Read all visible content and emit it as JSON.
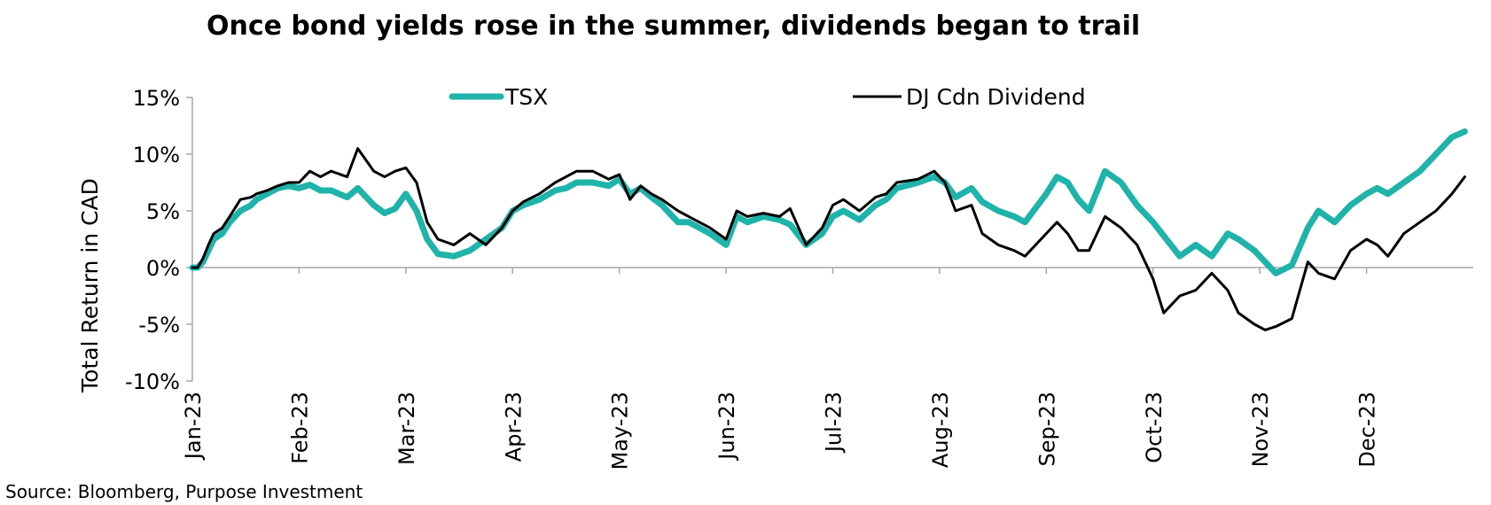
{
  "chart_data": {
    "type": "line",
    "title": "Once bond yields rose in the summer, dividends began to trail",
    "ylabel": "Total Return in CAD",
    "xlabel": "",
    "source": "Source: Bloomberg, Purpose Investment",
    "ylim": [
      -10,
      15
    ],
    "yticks": [
      -10,
      -5,
      0,
      5,
      10,
      15
    ],
    "ytick_labels": [
      "-10%",
      "-5%",
      "0%",
      "5%",
      "10%",
      "15%"
    ],
    "x_tick_labels": [
      "Jan-23",
      "Feb-23",
      "Mar-23",
      "Apr-23",
      "May-23",
      "Jun-23",
      "Jul-23",
      "Aug-23",
      "Sep-23",
      "Oct-23",
      "Nov-23",
      "Dec-23"
    ],
    "x_range": [
      0,
      12
    ],
    "grid": false,
    "legend_position": "top",
    "series": [
      {
        "name": "TSX",
        "color": "#1fb3aa",
        "x": [
          0,
          0.05,
          0.1,
          0.15,
          0.2,
          0.28,
          0.35,
          0.45,
          0.55,
          0.6,
          0.7,
          0.8,
          0.9,
          1.0,
          1.1,
          1.2,
          1.3,
          1.45,
          1.55,
          1.7,
          1.8,
          1.9,
          2.0,
          2.1,
          2.2,
          2.3,
          2.45,
          2.6,
          2.75,
          2.9,
          3.0,
          3.1,
          3.25,
          3.4,
          3.5,
          3.6,
          3.75,
          3.9,
          4.0,
          4.1,
          4.2,
          4.3,
          4.4,
          4.55,
          4.65,
          4.75,
          4.85,
          5.0,
          5.1,
          5.2,
          5.35,
          5.5,
          5.6,
          5.75,
          5.9,
          6.0,
          6.1,
          6.25,
          6.4,
          6.5,
          6.6,
          6.8,
          6.95,
          7.05,
          7.15,
          7.3,
          7.4,
          7.55,
          7.7,
          7.8,
          8.0,
          8.1,
          8.2,
          8.3,
          8.4,
          8.55,
          8.7,
          8.85,
          9.0,
          9.1,
          9.25,
          9.4,
          9.55,
          9.7,
          9.8,
          9.95,
          10.05,
          10.15,
          10.3,
          10.45,
          10.55,
          10.7,
          10.85,
          11.0,
          11.1,
          11.2,
          11.35,
          11.5,
          11.65,
          11.8,
          11.92
        ],
        "values": [
          0,
          0,
          0.5,
          1.5,
          2.5,
          3.0,
          4.0,
          5.0,
          5.5,
          6.0,
          6.5,
          7.0,
          7.2,
          7.0,
          7.3,
          6.8,
          6.8,
          6.2,
          7.0,
          5.5,
          4.8,
          5.2,
          6.5,
          5.0,
          2.5,
          1.2,
          1.0,
          1.5,
          2.5,
          3.5,
          5.0,
          5.5,
          6.0,
          6.8,
          7.0,
          7.5,
          7.5,
          7.2,
          7.8,
          6.5,
          7.0,
          6.2,
          5.5,
          4.0,
          4.0,
          3.5,
          3.0,
          2.0,
          4.5,
          4.0,
          4.5,
          4.2,
          3.8,
          2.0,
          3.0,
          4.5,
          5.0,
          4.2,
          5.5,
          6.0,
          7.0,
          7.5,
          8.0,
          7.5,
          6.2,
          7.0,
          5.8,
          5.0,
          4.5,
          4.0,
          6.5,
          8.0,
          7.5,
          6.0,
          5.0,
          8.5,
          7.5,
          5.5,
          4.0,
          2.8,
          1.0,
          2.0,
          1.0,
          3.0,
          2.5,
          1.5,
          0.5,
          -0.5,
          0.2,
          3.5,
          5.0,
          4.0,
          5.5,
          6.5,
          7.0,
          6.5,
          7.5,
          8.5,
          10.0,
          11.5,
          12.0
        ]
      },
      {
        "name": "DJ Cdn Dividend",
        "color": "#000000",
        "x": [
          0,
          0.05,
          0.1,
          0.15,
          0.2,
          0.28,
          0.35,
          0.45,
          0.55,
          0.6,
          0.7,
          0.8,
          0.9,
          1.0,
          1.1,
          1.2,
          1.3,
          1.45,
          1.55,
          1.7,
          1.8,
          1.9,
          2.0,
          2.1,
          2.2,
          2.3,
          2.45,
          2.6,
          2.75,
          2.9,
          3.0,
          3.1,
          3.25,
          3.4,
          3.5,
          3.6,
          3.75,
          3.9,
          4.0,
          4.1,
          4.2,
          4.3,
          4.4,
          4.55,
          4.65,
          4.75,
          4.85,
          5.0,
          5.1,
          5.2,
          5.35,
          5.5,
          5.6,
          5.75,
          5.9,
          6.0,
          6.1,
          6.25,
          6.4,
          6.5,
          6.6,
          6.8,
          6.95,
          7.05,
          7.15,
          7.3,
          7.4,
          7.55,
          7.7,
          7.8,
          8.0,
          8.1,
          8.2,
          8.3,
          8.4,
          8.55,
          8.7,
          8.85,
          9.0,
          9.1,
          9.25,
          9.4,
          9.55,
          9.7,
          9.8,
          9.95,
          10.05,
          10.15,
          10.3,
          10.45,
          10.55,
          10.7,
          10.85,
          11.0,
          11.1,
          11.2,
          11.35,
          11.5,
          11.65,
          11.8,
          11.92
        ],
        "values": [
          0,
          0,
          0.8,
          2.0,
          3.0,
          3.5,
          4.5,
          6.0,
          6.2,
          6.5,
          6.8,
          7.2,
          7.5,
          7.5,
          8.5,
          8.0,
          8.5,
          8.0,
          10.5,
          8.5,
          8.0,
          8.5,
          8.8,
          7.5,
          4.0,
          2.5,
          2.0,
          3.0,
          2.0,
          3.5,
          5.0,
          5.8,
          6.5,
          7.5,
          8.0,
          8.5,
          8.5,
          7.8,
          8.2,
          6.0,
          7.2,
          6.5,
          6.0,
          5.0,
          4.5,
          4.0,
          3.5,
          2.5,
          5.0,
          4.5,
          4.8,
          4.5,
          5.2,
          2.0,
          3.5,
          5.5,
          6.0,
          5.0,
          6.2,
          6.5,
          7.5,
          7.8,
          8.5,
          7.5,
          5.0,
          5.5,
          3.0,
          2.0,
          1.5,
          1.0,
          3.0,
          4.0,
          3.0,
          1.5,
          1.5,
          4.5,
          3.5,
          2.0,
          -1.0,
          -4.0,
          -2.5,
          -2.0,
          -0.5,
          -2.0,
          -4.0,
          -5.0,
          -5.5,
          -5.2,
          -4.5,
          0.5,
          -0.5,
          -1.0,
          1.5,
          2.5,
          2.0,
          1.0,
          3.0,
          4.0,
          5.0,
          6.5,
          8.0
        ]
      }
    ]
  }
}
